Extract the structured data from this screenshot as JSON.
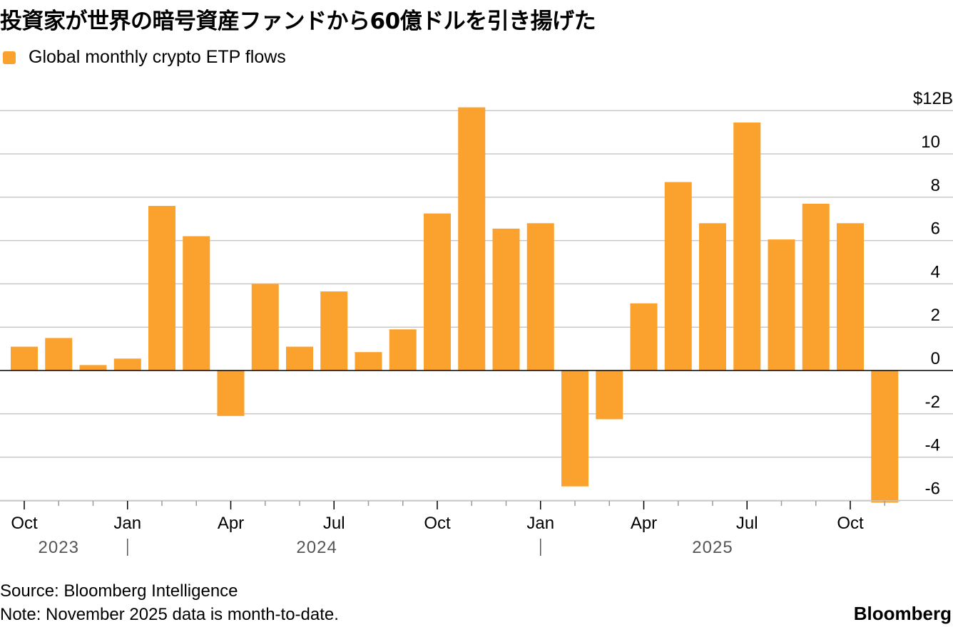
{
  "title": "投資家が世界の暗号資産ファンドから60億ドルを引き揚げた",
  "legend": {
    "label": "Global monthly crypto ETP flows",
    "color": "#fba12d"
  },
  "colors": {
    "bar": "#fba12d",
    "grid": "#c8c8c8",
    "zero": "#000000"
  },
  "chart_data": {
    "type": "bar",
    "months": [
      "2023-10",
      "2023-11",
      "2023-12",
      "2024-01",
      "2024-02",
      "2024-03",
      "2024-04",
      "2024-05",
      "2024-06",
      "2024-07",
      "2024-08",
      "2024-09",
      "2024-10",
      "2024-11",
      "2024-12",
      "2025-01",
      "2025-02",
      "2025-03",
      "2025-04",
      "2025-05",
      "2025-06",
      "2025-07",
      "2025-08",
      "2025-09",
      "2025-10",
      "2025-11"
    ],
    "values": [
      1.1,
      1.5,
      0.25,
      0.55,
      7.6,
      6.2,
      -2.1,
      4.0,
      1.1,
      3.65,
      0.85,
      1.9,
      7.25,
      12.15,
      6.55,
      6.8,
      -5.35,
      -2.25,
      3.1,
      8.7,
      6.8,
      11.45,
      6.05,
      7.7,
      6.8,
      -6.1
    ],
    "ylim": [
      -6.1,
      12.2
    ],
    "y_ticks": [
      12,
      10,
      8,
      6,
      4,
      2,
      0,
      -2,
      -4,
      -6
    ],
    "y_tick_labels": [
      "$12B",
      "10",
      "8",
      "6",
      "4",
      "2",
      "0",
      "-2",
      "-4",
      "-6"
    ],
    "x_tick_labels": [
      {
        "month_index": 0,
        "label": "Oct"
      },
      {
        "month_index": 3,
        "label": "Jan"
      },
      {
        "month_index": 6,
        "label": "Apr"
      },
      {
        "month_index": 9,
        "label": "Jul"
      },
      {
        "month_index": 12,
        "label": "Oct"
      },
      {
        "month_index": 15,
        "label": "Jan"
      },
      {
        "month_index": 18,
        "label": "Apr"
      },
      {
        "month_index": 21,
        "label": "Jul"
      },
      {
        "month_index": 24,
        "label": "Oct"
      }
    ],
    "years": [
      {
        "label": "2023",
        "first_month_index": 0,
        "last_month_index": 2
      },
      {
        "label": "2024",
        "first_month_index": 3,
        "last_month_index": 14
      },
      {
        "label": "2025",
        "first_month_index": 15,
        "last_month_index": 25
      }
    ],
    "grid": true,
    "legend_position": "top-left",
    "series": [
      {
        "name": "Global monthly crypto ETP flows"
      }
    ]
  },
  "footer": {
    "source": "Source: Bloomberg Intelligence",
    "note": "Note: November 2025 data is month-to-date.",
    "brand": "Bloomberg"
  }
}
